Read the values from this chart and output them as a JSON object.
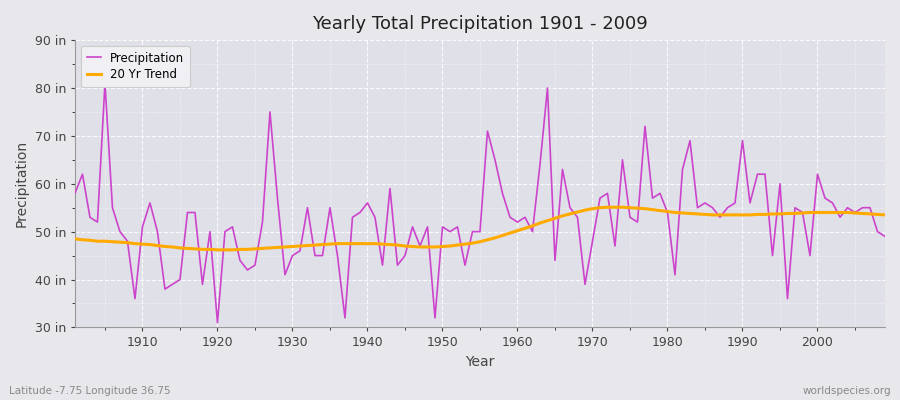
{
  "title": "Yearly Total Precipitation 1901 - 2009",
  "xlabel": "Year",
  "ylabel": "Precipitation",
  "subtitle": "Latitude -7.75 Longitude 36.75",
  "watermark": "worldspecies.org",
  "ylim": [
    30,
    90
  ],
  "yticks": [
    30,
    40,
    50,
    60,
    70,
    80,
    90
  ],
  "ytick_labels": [
    "30 in",
    "40 in",
    "50 in",
    "60 in",
    "70 in",
    "80 in",
    "90 in"
  ],
  "xlim": [
    1901,
    2009
  ],
  "fig_bg_color": "#e8e8ec",
  "plot_bg_color": "#e0e0e8",
  "precip_color": "#cc44cc",
  "trend_color": "#ffaa00",
  "legend_precip": "Precipitation",
  "legend_trend": "20 Yr Trend",
  "xticks": [
    1910,
    1920,
    1930,
    1940,
    1950,
    1960,
    1970,
    1980,
    1990,
    2000
  ],
  "years": [
    1901,
    1902,
    1903,
    1904,
    1905,
    1906,
    1907,
    1908,
    1909,
    1910,
    1911,
    1912,
    1913,
    1914,
    1915,
    1916,
    1917,
    1918,
    1919,
    1920,
    1921,
    1922,
    1923,
    1924,
    1925,
    1926,
    1927,
    1928,
    1929,
    1930,
    1931,
    1932,
    1933,
    1934,
    1935,
    1936,
    1937,
    1938,
    1939,
    1940,
    1941,
    1942,
    1943,
    1944,
    1945,
    1946,
    1947,
    1948,
    1949,
    1950,
    1951,
    1952,
    1953,
    1954,
    1955,
    1956,
    1957,
    1958,
    1959,
    1960,
    1961,
    1962,
    1963,
    1964,
    1965,
    1966,
    1967,
    1968,
    1969,
    1970,
    1971,
    1972,
    1973,
    1974,
    1975,
    1976,
    1977,
    1978,
    1979,
    1980,
    1981,
    1982,
    1983,
    1984,
    1985,
    1986,
    1987,
    1988,
    1989,
    1990,
    1991,
    1992,
    1993,
    1994,
    1995,
    1996,
    1997,
    1998,
    1999,
    2000,
    2001,
    2002,
    2003,
    2004,
    2005,
    2006,
    2007,
    2008,
    2009
  ],
  "precip": [
    58,
    62,
    53,
    52,
    81,
    55,
    50,
    48,
    36,
    51,
    56,
    50,
    38,
    39,
    40,
    54,
    54,
    39,
    50,
    31,
    50,
    51,
    44,
    42,
    43,
    52,
    75,
    57,
    41,
    45,
    46,
    55,
    45,
    45,
    55,
    45,
    32,
    53,
    54,
    56,
    53,
    43,
    59,
    43,
    45,
    51,
    47,
    51,
    32,
    51,
    50,
    51,
    43,
    50,
    50,
    71,
    65,
    58,
    53,
    52,
    53,
    50,
    64,
    80,
    44,
    63,
    55,
    53,
    39,
    48,
    57,
    58,
    47,
    65,
    53,
    52,
    72,
    57,
    58,
    54,
    41,
    63,
    69,
    55,
    56,
    55,
    53,
    55,
    56,
    69,
    56,
    62,
    62,
    45,
    60,
    36,
    55,
    54,
    45,
    62,
    57,
    56,
    53,
    55,
    54,
    55,
    55,
    50,
    49
  ],
  "trend": [
    48.5,
    48.3,
    48.2,
    48.0,
    48.0,
    47.9,
    47.8,
    47.7,
    47.5,
    47.4,
    47.3,
    47.1,
    46.9,
    46.8,
    46.6,
    46.5,
    46.4,
    46.3,
    46.3,
    46.2,
    46.2,
    46.2,
    46.3,
    46.3,
    46.4,
    46.5,
    46.6,
    46.7,
    46.8,
    46.9,
    47.0,
    47.1,
    47.2,
    47.3,
    47.4,
    47.5,
    47.5,
    47.5,
    47.5,
    47.5,
    47.5,
    47.4,
    47.3,
    47.2,
    47.0,
    46.9,
    46.8,
    46.8,
    46.8,
    46.9,
    47.0,
    47.2,
    47.4,
    47.6,
    47.9,
    48.3,
    48.7,
    49.2,
    49.7,
    50.2,
    50.7,
    51.2,
    51.8,
    52.3,
    52.8,
    53.3,
    53.7,
    54.1,
    54.5,
    54.8,
    55.0,
    55.1,
    55.1,
    55.1,
    55.0,
    54.9,
    54.8,
    54.6,
    54.4,
    54.2,
    54.0,
    53.9,
    53.8,
    53.7,
    53.6,
    53.5,
    53.5,
    53.5,
    53.5,
    53.5,
    53.5,
    53.6,
    53.6,
    53.7,
    53.7,
    53.8,
    53.8,
    53.9,
    54.0,
    54.0,
    54.0,
    54.0,
    54.0,
    54.0,
    53.9,
    53.8,
    53.7,
    53.6,
    53.5
  ]
}
